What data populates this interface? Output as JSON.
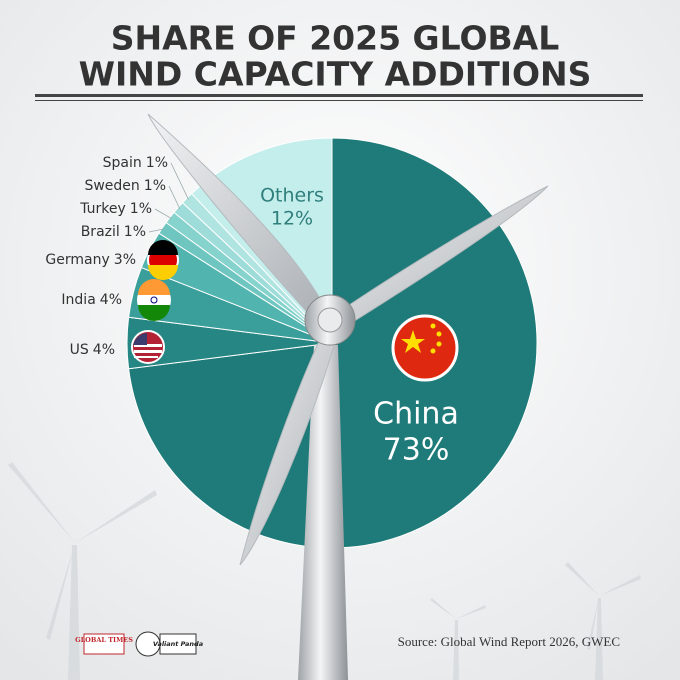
{
  "chart_data": {
    "type": "pie",
    "title": [
      "SHARE OF 2025 GLOBAL",
      "WIND CAPACITY ADDITIONS"
    ],
    "categories": [
      "China",
      "US",
      "India",
      "Germany",
      "Brazil",
      "Turkey",
      "Sweden",
      "Spain",
      "Others"
    ],
    "values": [
      73,
      4,
      4,
      3,
      1,
      1,
      1,
      1,
      12
    ],
    "value_labels": [
      "73%",
      "4%",
      "4%",
      "3%",
      "1%",
      "1%",
      "1%",
      "1%",
      "12%"
    ],
    "colors": [
      "#1f7b79",
      "#268683",
      "#3a9e9a",
      "#52b4af",
      "#6fc6c1",
      "#86d2cd",
      "#9ddcd8",
      "#b0e4e1",
      "#c4eeec"
    ],
    "source": "Source: Global Wind Report 2026, GWEC",
    "credits": [
      "GLOBAL TIMES",
      "Valiant Panda"
    ]
  }
}
